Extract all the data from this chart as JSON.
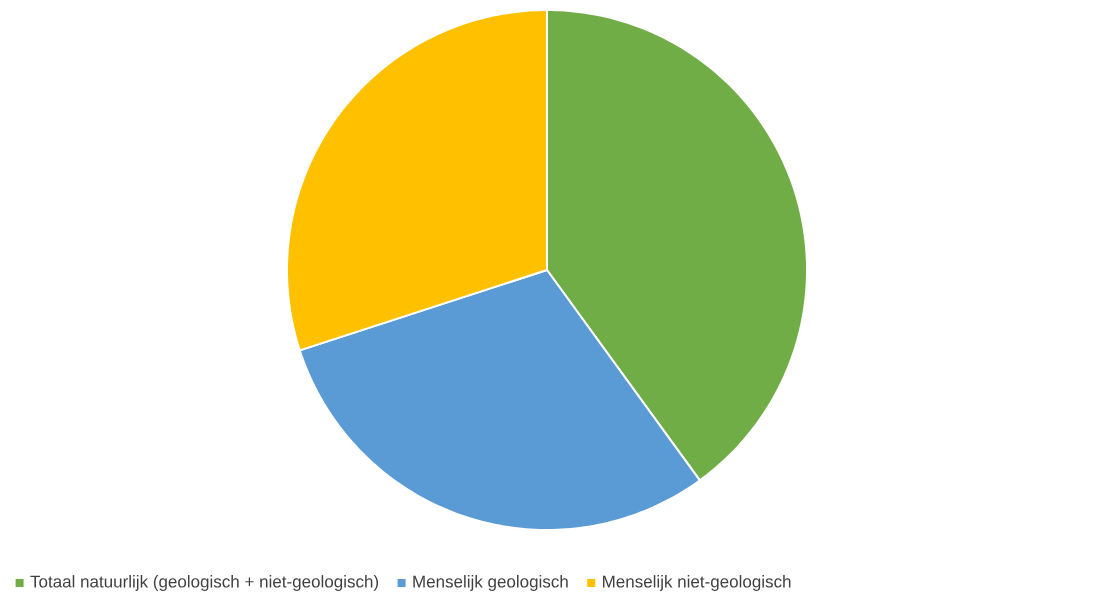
{
  "chart_data": {
    "type": "pie",
    "categories": [
      "Totaal natuurlijk (geologisch + niet-geologisch)",
      "Menselijk geologisch",
      "Menselijk niet-geologisch"
    ],
    "values": [
      40,
      30,
      30
    ],
    "colors": [
      "#70ad47",
      "#5b9bd5",
      "#ffc000"
    ],
    "legend": "bottom"
  }
}
